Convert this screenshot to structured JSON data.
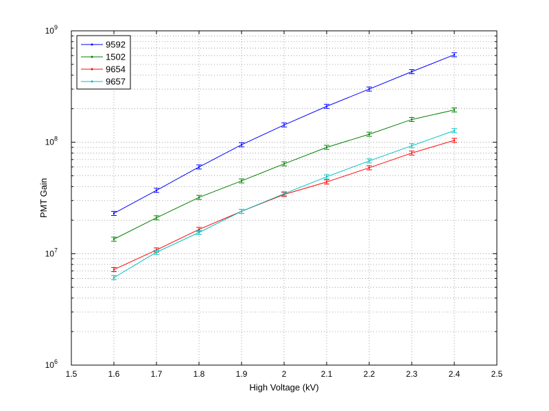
{
  "chart_data": {
    "type": "line",
    "title": "",
    "xlabel": "High Voltage (kV)",
    "ylabel": "PMT Gain",
    "xlim": [
      1.5,
      2.5
    ],
    "ylim": [
      1000000,
      1000000000
    ],
    "yscale": "log",
    "grid": true,
    "legend_position": "top-left",
    "x_ticks": [
      "1.5",
      "1.6",
      "1.7",
      "1.8",
      "1.9",
      "2",
      "2.1",
      "2.2",
      "2.3",
      "2.4",
      "2.5"
    ],
    "y_ticks": [
      {
        "base": "10",
        "exp": "6"
      },
      {
        "base": "10",
        "exp": "7"
      },
      {
        "base": "10",
        "exp": "8"
      },
      {
        "base": "10",
        "exp": "9"
      }
    ],
    "x": [
      1.6,
      1.7,
      1.8,
      1.9,
      2.0,
      2.1,
      2.2,
      2.3,
      2.4
    ],
    "series": [
      {
        "name": "9592",
        "color": "#0000ff",
        "values": [
          23000000,
          37000000,
          60000000,
          95000000,
          143000000,
          210000000,
          300000000,
          430000000,
          610000000
        ]
      },
      {
        "name": "1502",
        "color": "#008000",
        "values": [
          13500000,
          21000000,
          32000000,
          45000000,
          64000000,
          90000000,
          118000000,
          160000000,
          195000000
        ]
      },
      {
        "name": "9654",
        "color": "#ff0000",
        "values": [
          7200000,
          10800000,
          16500000,
          24000000,
          34000000,
          44000000,
          59000000,
          80000000,
          104000000
        ]
      },
      {
        "name": "9657",
        "color": "#00bfbf",
        "values": [
          6100000,
          10300000,
          15500000,
          24000000,
          34500000,
          49000000,
          68000000,
          93000000,
          127000000
        ]
      }
    ]
  }
}
